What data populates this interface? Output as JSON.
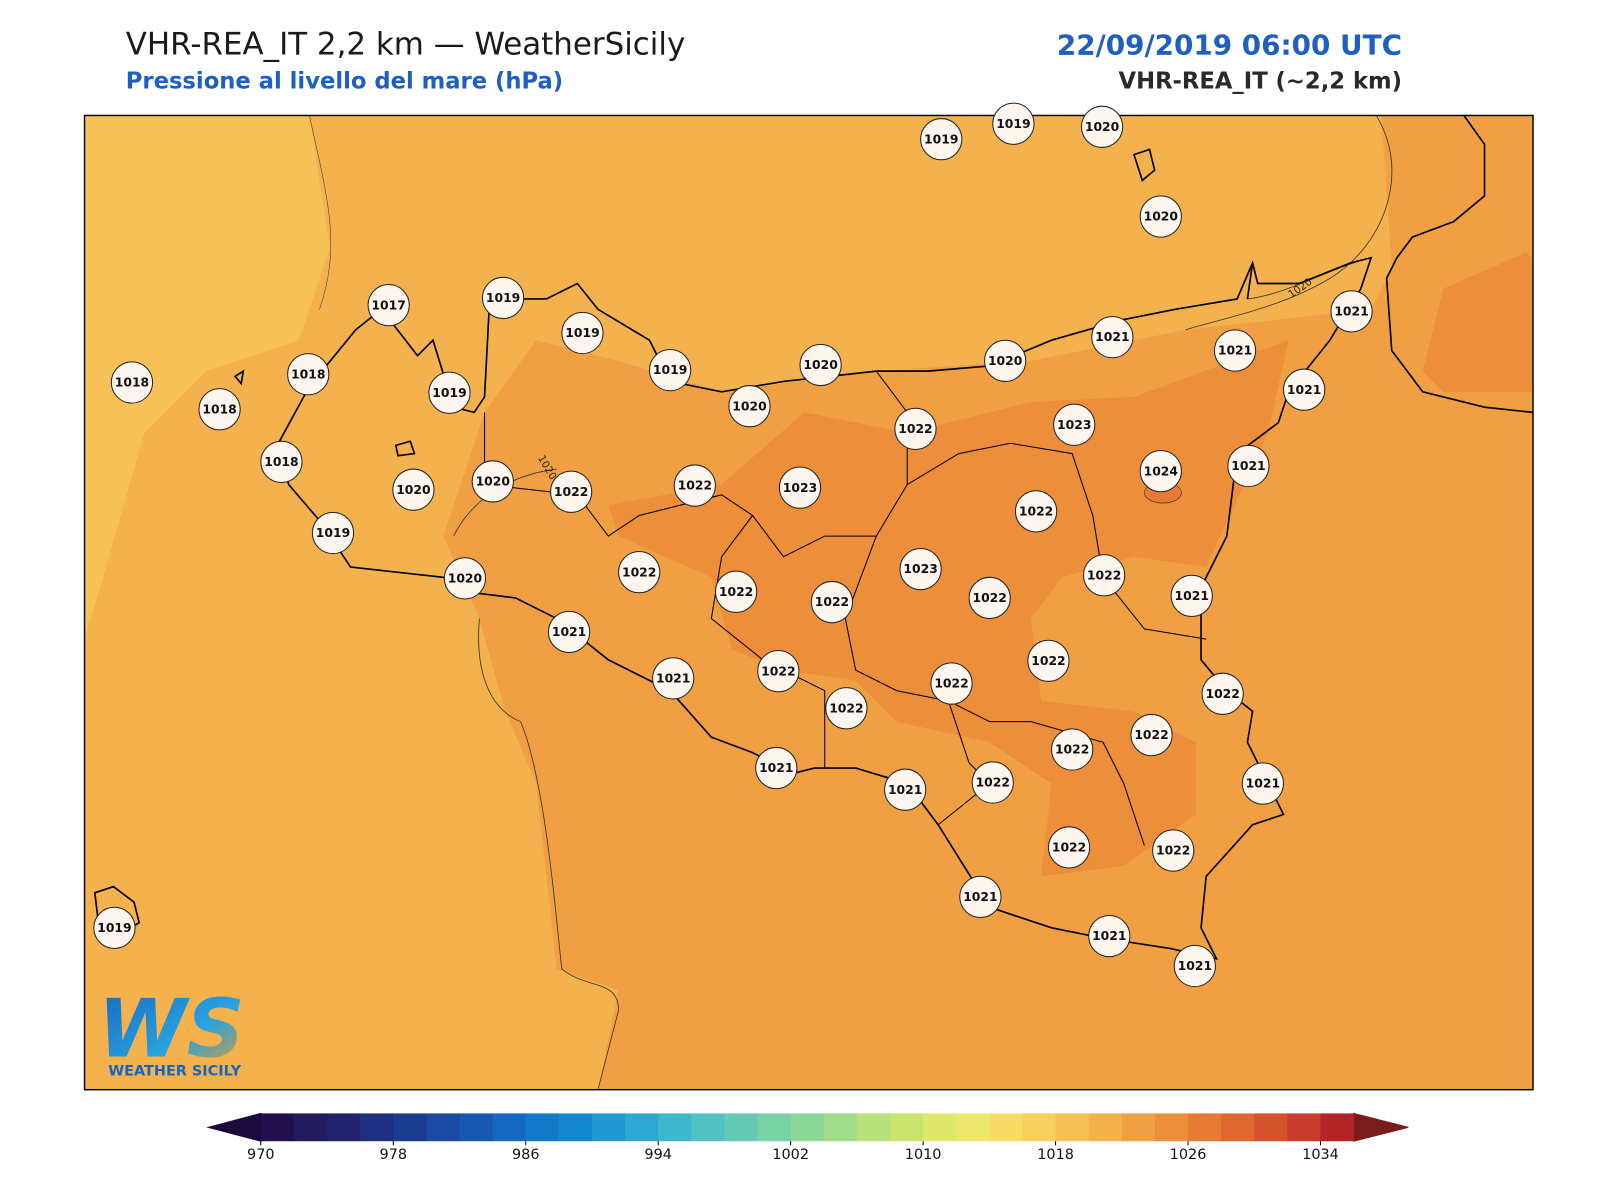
{
  "header": {
    "title": "VHR-REA_IT 2,2 km — WeatherSicily",
    "subtitle": "Pressione al livello del mare (hPa)",
    "datetime": "22/09/2019 06:00 UTC",
    "model": "VHR-REA_IT (~2,2 km)"
  },
  "map": {
    "stations": [
      1019,
      1019,
      1020,
      1020,
      1017,
      1019,
      1019,
      1019,
      1020,
      1020,
      1021,
      1021,
      1021,
      1021,
      1018,
      1018,
      1018,
      1019,
      1020,
      1022,
      1023,
      1024,
      1021,
      1018,
      1020,
      1020,
      1022,
      1022,
      1023,
      1022,
      1019,
      1022,
      1023,
      1022,
      1022,
      1022,
      1022,
      1021,
      1020,
      1021,
      1021,
      1022,
      1022,
      1022,
      1022,
      1022,
      1022,
      1022,
      1021,
      1021,
      1022,
      1021,
      1022,
      1022,
      1021,
      1021,
      1021,
      1019
    ],
    "contour_labels": [
      1020,
      1020
    ]
  },
  "colorbar": {
    "range": [
      970,
      1036
    ],
    "ticks": [
      970,
      978,
      986,
      994,
      1002,
      1010,
      1018,
      1026,
      1034
    ],
    "colors": [
      "#23104f",
      "#241a5e",
      "#22226e",
      "#1f2f80",
      "#1c3c92",
      "#1a4aa3",
      "#1759b2",
      "#1568bf",
      "#1478c8",
      "#1688d0",
      "#1f98d4",
      "#2ea8d2",
      "#40b6cc",
      "#52c1c2",
      "#64cab4",
      "#77d2a6",
      "#8cd897",
      "#a1dd88",
      "#b6e279",
      "#cae56e",
      "#dde86c",
      "#ede770",
      "#f7dd68",
      "#f9cf5f",
      "#f7c158",
      "#f4b24e",
      "#f0a043",
      "#ec8e3a",
      "#e67b34",
      "#df682f",
      "#d5532c",
      "#c83c2b",
      "#b32427"
    ],
    "extend_colors": [
      "#1b0a3c",
      "#7a1c1c"
    ]
  },
  "logo": {
    "mark": "WS",
    "text": "WEATHER SICILY"
  }
}
